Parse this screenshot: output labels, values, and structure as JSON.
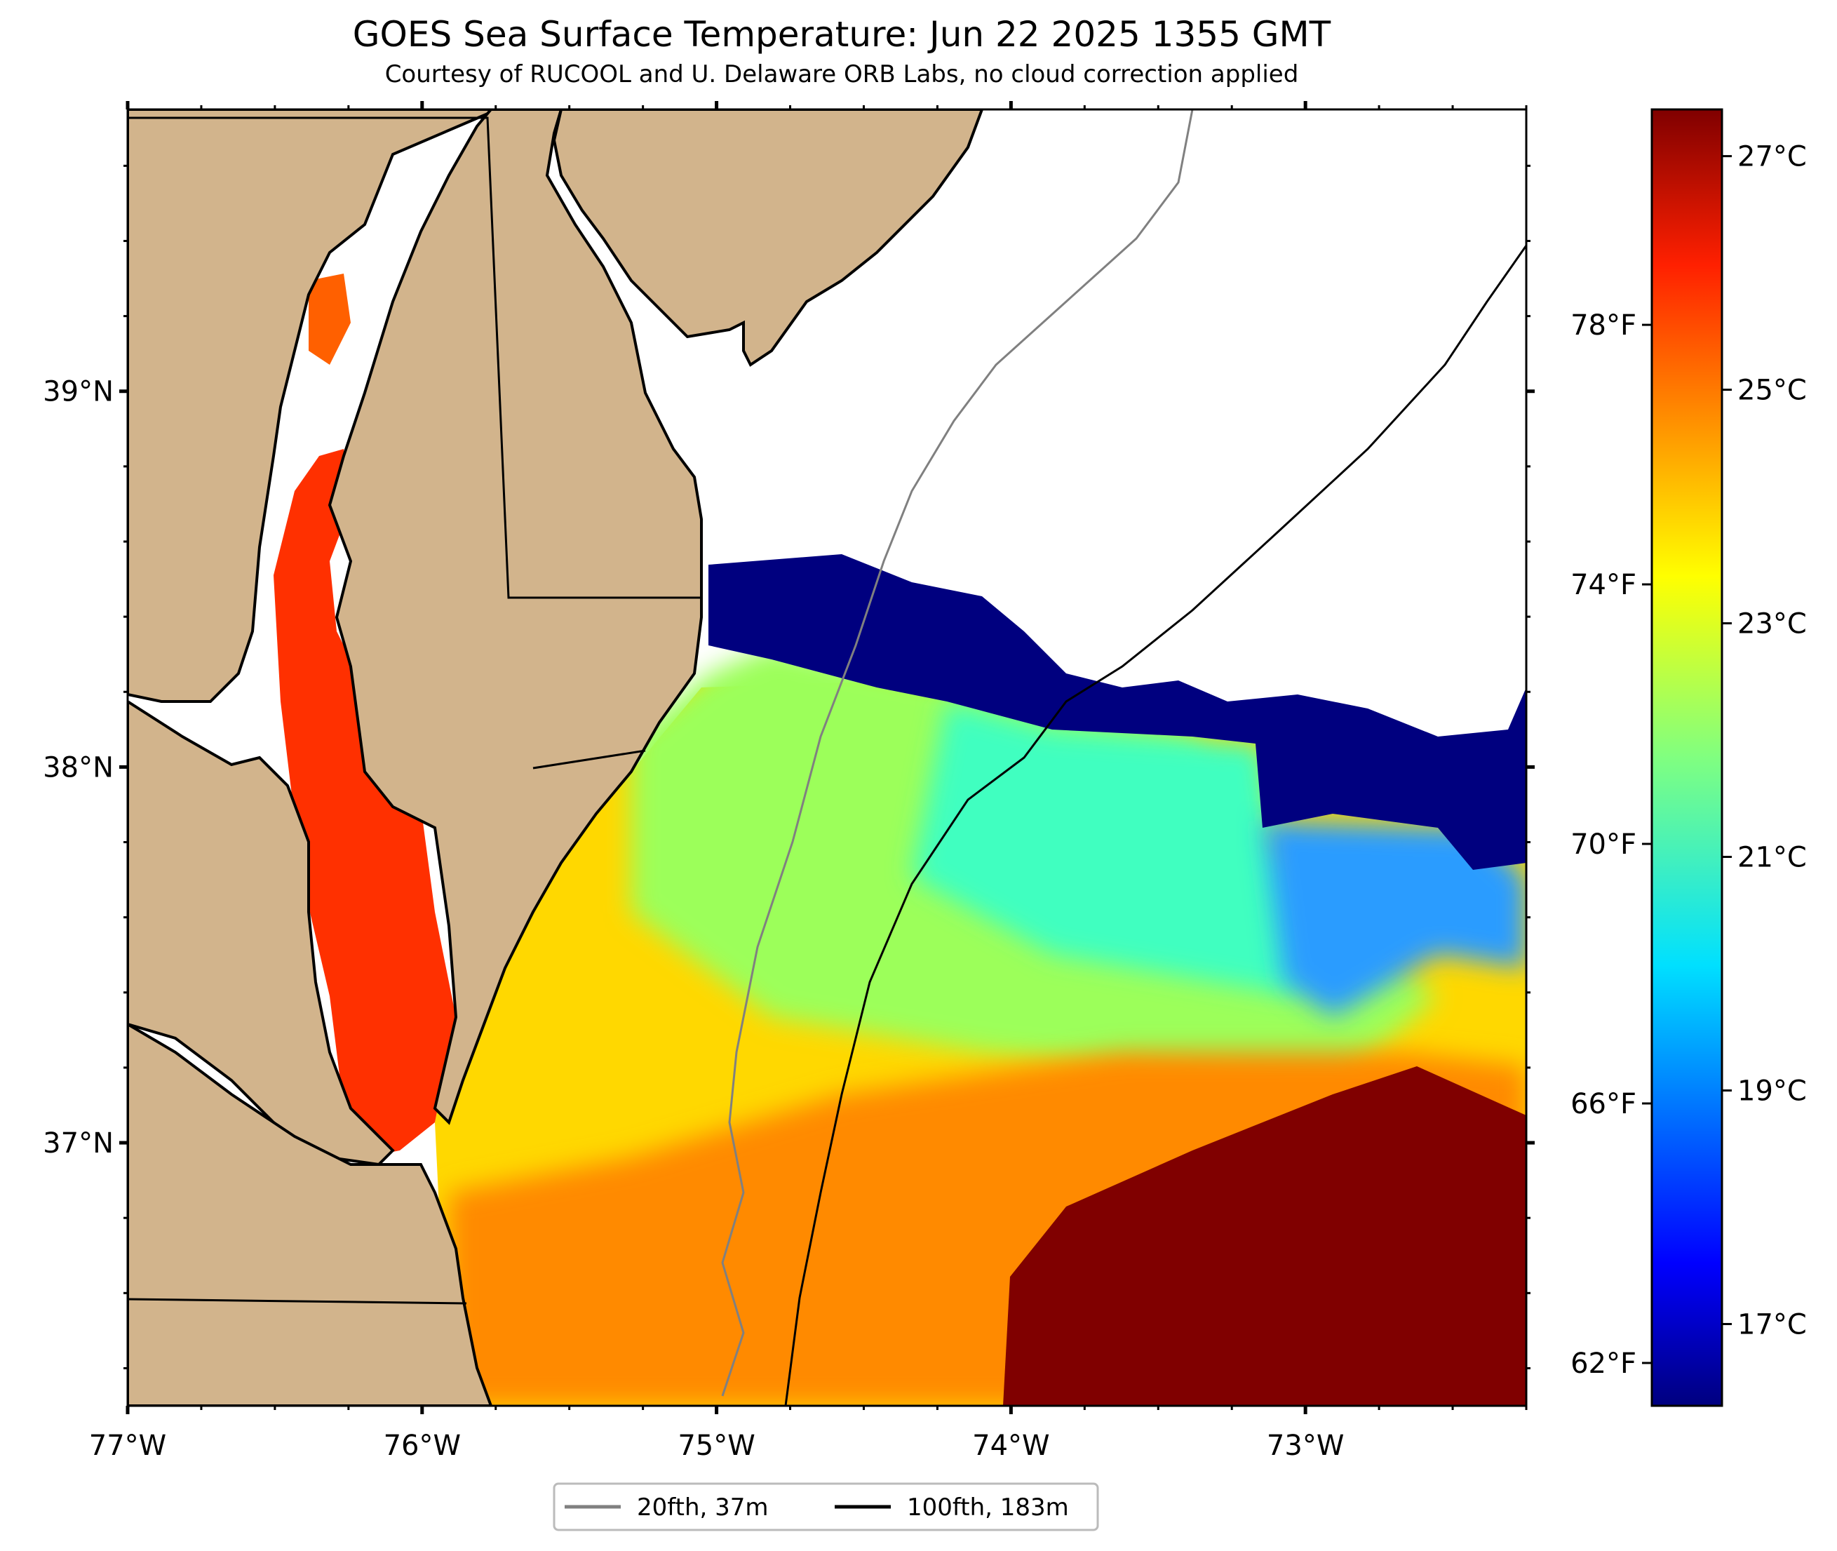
{
  "title": "GOES Sea Surface Temperature: Jun 22 2025 1355 GMT",
  "subtitle": "Courtesy of RUCOOL and U. Delaware ORB Labs, no cloud correction applied",
  "map": {
    "lon_range": [
      -77.0,
      -72.25
    ],
    "lat_range": [
      36.3,
      39.75
    ],
    "lon_ticks": [
      {
        "value": -77,
        "label": "77°W"
      },
      {
        "value": -76,
        "label": "76°W"
      },
      {
        "value": -75,
        "label": "75°W"
      },
      {
        "value": -74,
        "label": "74°W"
      },
      {
        "value": -73,
        "label": "73°W"
      }
    ],
    "lat_ticks": [
      {
        "value": 39,
        "label": "39°N"
      },
      {
        "value": 38,
        "label": "38°N"
      },
      {
        "value": 37,
        "label": "37°N"
      }
    ],
    "land_color": "#d2b48c",
    "cloud_color": "#ffffff",
    "ocean_sst_regions": [
      {
        "name": "cold-upwelling-band",
        "temp_c": 16.5
      },
      {
        "name": "shelf-water",
        "temp_c": 21.5
      },
      {
        "name": "nearshore-warm",
        "temp_c": 24
      },
      {
        "name": "gulf-stream",
        "temp_c": 27.5
      },
      {
        "name": "chesapeake-bay",
        "temp_c": 26.5
      }
    ]
  },
  "colorbar": {
    "colormap": "jet",
    "range_c": [
      16.3,
      27.4
    ],
    "celsius_ticks": [
      {
        "value": 27,
        "label": "27°C"
      },
      {
        "value": 25,
        "label": "25°C"
      },
      {
        "value": 23,
        "label": "23°C"
      },
      {
        "value": 21,
        "label": "21°C"
      },
      {
        "value": 19,
        "label": "19°C"
      },
      {
        "value": 17,
        "label": "17°C"
      }
    ],
    "fahrenheit_ticks": [
      {
        "value": 78,
        "label": "78°F"
      },
      {
        "value": 74,
        "label": "74°F"
      },
      {
        "value": 70,
        "label": "70°F"
      },
      {
        "value": 66,
        "label": "66°F"
      },
      {
        "value": 62,
        "label": "62°F"
      }
    ]
  },
  "legend": {
    "items": [
      {
        "label": "20fth, 37m",
        "color": "#808080"
      },
      {
        "label": "100fth, 183m",
        "color": "#000000"
      }
    ]
  }
}
